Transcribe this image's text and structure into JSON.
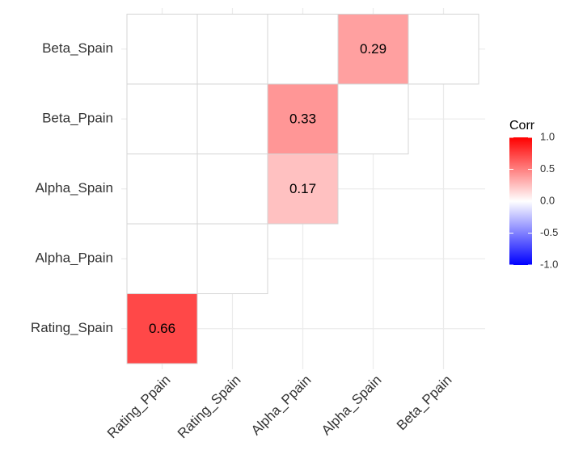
{
  "chart_data": {
    "type": "heatmap",
    "x_categories": [
      "Rating_Ppain",
      "Rating_Spain",
      "Alpha_Ppain",
      "Alpha_Spain",
      "Beta_Ppain"
    ],
    "y_categories": [
      "Rating_Spain",
      "Alpha_Ppain",
      "Alpha_Spain",
      "Beta_Ppain",
      "Beta_Spain"
    ],
    "values": [
      [
        0.66
      ],
      [
        null,
        null
      ],
      [
        null,
        null,
        0.17
      ],
      [
        null,
        null,
        0.33,
        null
      ],
      [
        null,
        null,
        null,
        0.29,
        null
      ]
    ],
    "grid": true,
    "colorbar": {
      "title": "Corr",
      "lim": [
        -1,
        1
      ],
      "ticks": [
        {
          "value": 1,
          "label": "1.0"
        },
        {
          "value": 0.5,
          "label": "0.5"
        },
        {
          "value": 0,
          "label": "0.0"
        },
        {
          "value": -0.5,
          "label": "-0.5"
        },
        {
          "value": -1,
          "label": "-1.0"
        }
      ],
      "colors": {
        "low": "#0000ff",
        "mid": "#ffffff",
        "high": "#ff0000"
      }
    }
  }
}
